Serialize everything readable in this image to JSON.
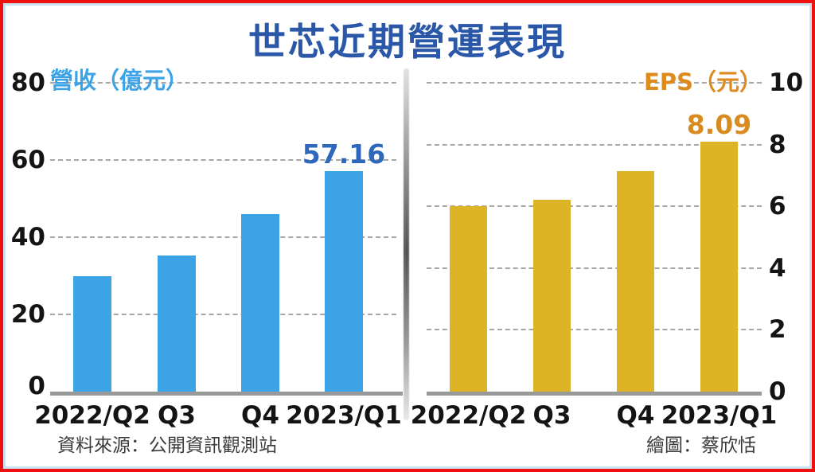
{
  "title": "世芯近期營運表現",
  "footer": {
    "source": "資料來源：公開資訊觀測站",
    "credit": "繪圖：蔡欣恬"
  },
  "colors": {
    "frame_outer": "#f01010",
    "frame_inner": "#c9e2f3",
    "title_text": "#2a57a8",
    "axis_line": "#999999",
    "gridline": "#a6a6a6",
    "tick_text": "#141414",
    "category_text": "#141414",
    "footer_text": "#3a3a3a",
    "divider_gray": "#555555",
    "revenue_bar": "#3ba3e6",
    "revenue_axis_label": "#3ba3e6",
    "revenue_value_label": "#2d68bc",
    "eps_bar": "#ddb426",
    "eps_axis_label": "#dd8b1f",
    "eps_value_label": "#d98a20"
  },
  "chart_data": [
    {
      "type": "bar",
      "name": "revenue",
      "ylabel": "營收（億元）",
      "categories": [
        "2022/Q2",
        "Q3",
        "Q4",
        "2023/Q1"
      ],
      "values": [
        29.8,
        35.2,
        45.9,
        57.16
      ],
      "value_labels": {
        "3": "57.16"
      },
      "ylim": [
        0,
        80
      ],
      "yticks": [
        0,
        20,
        40,
        60,
        80
      ],
      "axis_side": "left",
      "grid": true,
      "legend": "none",
      "bar_color": "#3ba3e6",
      "value_label_color": "#2d68bc"
    },
    {
      "type": "bar",
      "name": "eps",
      "ylabel": "EPS（元）",
      "categories": [
        "2022/Q2",
        "Q3",
        "Q4",
        "2023/Q1"
      ],
      "values": [
        6.0,
        6.2,
        7.15,
        8.09
      ],
      "value_labels": {
        "3": "8.09"
      },
      "ylim": [
        0,
        10
      ],
      "yticks": [
        0,
        2,
        4,
        6,
        8,
        10
      ],
      "axis_side": "right",
      "grid": true,
      "legend": "none",
      "bar_color": "#ddb426",
      "value_label_color": "#d98a20"
    }
  ]
}
